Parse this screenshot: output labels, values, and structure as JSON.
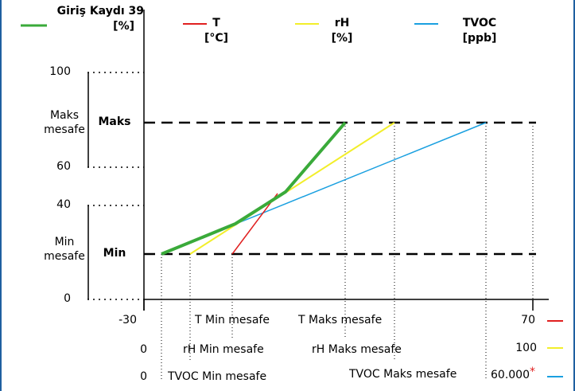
{
  "legend": {
    "entry": {
      "line1": "Giriş Kaydı 39",
      "line2": "[%]",
      "color": "#3aaa3a"
    },
    "t": {
      "line1": "T",
      "line2": "[°C]",
      "color": "#e02020"
    },
    "rh": {
      "line1": "rH",
      "line2": "[%]",
      "color": "#f2ee2a"
    },
    "tvoc": {
      "line1": "TVOC",
      "line2": "[ppb]",
      "color": "#1aa0e0"
    }
  },
  "y_axis": {
    "tick_100": "100",
    "tick_60": "60",
    "tick_40": "40",
    "tick_0": "0",
    "max_range_line1": "Maks",
    "max_range_line2": "mesafe",
    "min_range_line1": "Min",
    "min_range_line2": "mesafe",
    "max_label": "Maks",
    "min_label": "Min"
  },
  "x_axis": {
    "t_row": {
      "min_value": "-30",
      "min_label": "T Min mesafe",
      "max_label": "T Maks mesafe",
      "max_value": "70"
    },
    "rh_row": {
      "min_value": "0",
      "min_label": "rH Min mesafe",
      "max_label": "rH Maks mesafe",
      "max_value": "100"
    },
    "tvoc_row": {
      "min_value": "0",
      "min_label": "TVOC Min mesafe",
      "max_label": "TVOC Maks mesafe",
      "max_value": "60.000",
      "footnote_mark": "*"
    }
  },
  "chart_data": {
    "type": "line",
    "y_axis_ticks": [
      0,
      40,
      60,
      100
    ],
    "min_output_level": "Min",
    "max_output_level": "Maks",
    "series": [
      {
        "name": "Giriş Kaydı 39 [%]",
        "color": "#3aaa3a"
      },
      {
        "name": "T [°C]",
        "color": "#e02020",
        "range": [
          -30,
          70
        ]
      },
      {
        "name": "rH [%]",
        "color": "#f2ee2a",
        "range": [
          0,
          100
        ]
      },
      {
        "name": "TVOC [ppb]",
        "color": "#1aa0e0",
        "range": [
          0,
          60000
        ]
      }
    ]
  }
}
